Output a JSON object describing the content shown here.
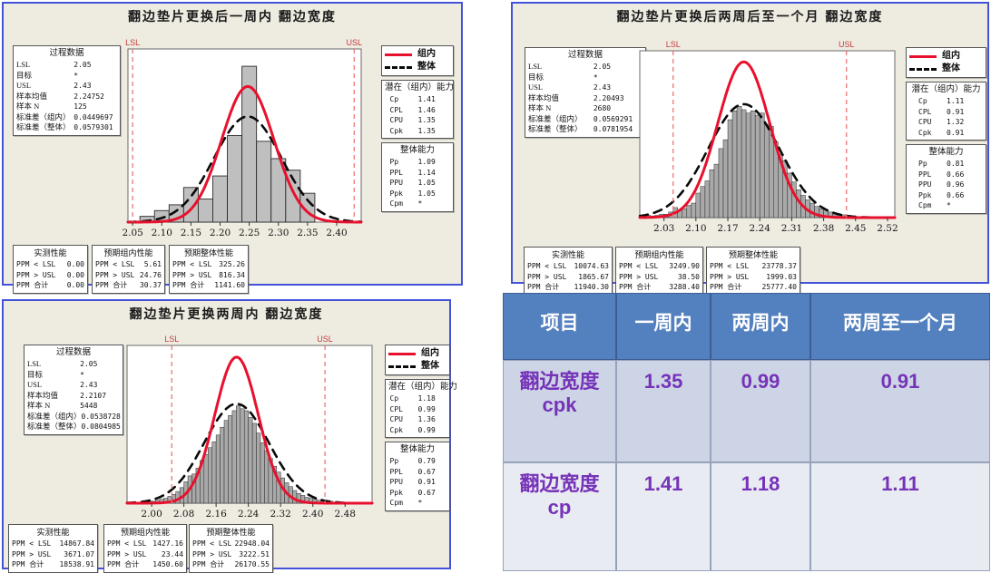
{
  "colors": {
    "panel_bg": "#EEEBE1",
    "panel_border": "#4353D9",
    "within_curve": "#E8112D",
    "overall_curve": "#0A0A0A",
    "spec_line": "#E87878",
    "spec_text": "#C43B3B",
    "bar_fill": "#BFBFBF",
    "bar_fill_dense": "#A9A9A9",
    "table_header_bg": "#5380BE",
    "table_row1_bg": "#CDD4E6",
    "table_row2_bg": "#E9EBF3",
    "table_value_text": "#7633B8"
  },
  "chart_data": [
    {
      "type": "histogram-capability",
      "title": "翻边垫片更换后一周内  翻边宽度",
      "legend": [
        {
          "label": "组内",
          "style": "within"
        },
        {
          "label": "整体",
          "style": "overall"
        }
      ],
      "process_data": {
        "title": "过程数据",
        "rows": [
          [
            "LSL",
            "2.05"
          ],
          [
            "目标",
            "*"
          ],
          [
            "USL",
            "2.43"
          ],
          [
            "样本均值",
            "2.24752"
          ],
          [
            "样本 N",
            "125"
          ],
          [
            "标准差（组内）",
            "0.0449697"
          ],
          [
            "标准差（整体）",
            "0.0579301"
          ]
        ]
      },
      "within_capability": {
        "title": "潜在（组内）能力",
        "rows": [
          [
            "Cp",
            "1.41"
          ],
          [
            "CPL",
            "1.46"
          ],
          [
            "CPU",
            "1.35"
          ],
          [
            "Cpk",
            "1.35"
          ]
        ]
      },
      "overall_capability": {
        "title": "整体能力",
        "rows": [
          [
            "Pp",
            "1.09"
          ],
          [
            "PPL",
            "1.14"
          ],
          [
            "PPU",
            "1.05"
          ],
          [
            "Ppk",
            "1.05"
          ],
          [
            "Cpm",
            "*"
          ]
        ]
      },
      "performance": [
        {
          "title": "实测性能",
          "rows": [
            [
              "PPM < LSL",
              "0.00"
            ],
            [
              "PPM > USL",
              "0.00"
            ],
            [
              "PPM 合计",
              "0.00"
            ]
          ]
        },
        {
          "title": "预期组内性能",
          "rows": [
            [
              "PPM < LSL",
              "5.61"
            ],
            [
              "PPM > USL",
              "24.76"
            ],
            [
              "PPM 合计",
              "30.37"
            ]
          ]
        },
        {
          "title": "预期整体性能",
          "rows": [
            [
              "PPM < LSL",
              "325.26"
            ],
            [
              "PPM > USL",
              "816.34"
            ],
            [
              "PPM 合计",
              "1141.60"
            ]
          ]
        }
      ],
      "lsl": 2.05,
      "usl": 2.43,
      "lsl_label": "LSL",
      "usl_label": "USL",
      "x_ticks": [
        "2.05",
        "2.10",
        "2.15",
        "2.20",
        "2.25",
        "2.30",
        "2.35",
        "2.40"
      ],
      "xmin": 2.042,
      "xmax": 2.442,
      "ymax": 30,
      "bins": {
        "start": 2.0625,
        "width": 0.025,
        "heights": [
          1,
          2,
          3,
          6,
          4,
          8,
          15,
          27,
          14,
          11,
          9,
          5
        ]
      },
      "curves": {
        "within": {
          "mean": 2.24752,
          "sd": 0.0449697,
          "peak": 23.5
        },
        "overall": {
          "mean": 2.24752,
          "sd": 0.0579301,
          "peak": 18.3
        }
      }
    },
    {
      "type": "histogram-capability",
      "title": "翻边垫片更换后两周后至一个月  翻边宽度",
      "legend": [
        {
          "label": "组内",
          "style": "within"
        },
        {
          "label": "整体",
          "style": "overall"
        }
      ],
      "process_data": {
        "title": "过程数据",
        "rows": [
          [
            "LSL",
            "2.05"
          ],
          [
            "目标",
            "*"
          ],
          [
            "USL",
            "2.43"
          ],
          [
            "样本均值",
            "2.20493"
          ],
          [
            "样本 N",
            "2680"
          ],
          [
            "标准差（组内）",
            "0.0569291"
          ],
          [
            "标准差（整体）",
            "0.0781954"
          ]
        ]
      },
      "within_capability": {
        "title": "潜在（组内）能力",
        "rows": [
          [
            "Cp",
            "1.11"
          ],
          [
            "CPL",
            "0.91"
          ],
          [
            "CPU",
            "1.32"
          ],
          [
            "Cpk",
            "0.91"
          ]
        ]
      },
      "overall_capability": {
        "title": "整体能力",
        "rows": [
          [
            "Pp",
            "0.81"
          ],
          [
            "PPL",
            "0.66"
          ],
          [
            "PPU",
            "0.96"
          ],
          [
            "Ppk",
            "0.66"
          ],
          [
            "Cpm",
            "*"
          ]
        ]
      },
      "performance": [
        {
          "title": "实测性能",
          "rows": [
            [
              "PPM < LSL",
              "10074.63"
            ],
            [
              "PPM > USL",
              "1865.67"
            ],
            [
              "PPM 合计",
              "11940.30"
            ]
          ]
        },
        {
          "title": "预期组内性能",
          "rows": [
            [
              "PPM < LSL",
              "3249.90"
            ],
            [
              "PPM > USL",
              "38.50"
            ],
            [
              "PPM 合计",
              "3288.40"
            ]
          ]
        },
        {
          "title": "预期整体性能",
          "rows": [
            [
              "PPM < LSL",
              "23778.37"
            ],
            [
              "PPM > USL",
              "1999.03"
            ],
            [
              "PPM 合计",
              "25777.40"
            ]
          ]
        }
      ],
      "lsl": 2.05,
      "usl": 2.43,
      "lsl_label": "LSL",
      "usl_label": "USL",
      "x_ticks": [
        "2.03",
        "2.10",
        "2.17",
        "2.24",
        "2.31",
        "2.38",
        "2.45",
        "2.52"
      ],
      "xmin": 1.977,
      "xmax": 2.536,
      "ymax": 1.5,
      "bins": {
        "start": 1.99,
        "width": 0.01,
        "heights": [
          0.02,
          0.015,
          0.02,
          0.03,
          0.03,
          0.05,
          0.09,
          0.06,
          0.08,
          0.11,
          0.13,
          0.22,
          0.28,
          0.33,
          0.43,
          0.48,
          0.62,
          0.7,
          0.88,
          0.96,
          1.0,
          0.97,
          0.94,
          0.96,
          0.92,
          0.94,
          0.84,
          0.82,
          0.68,
          0.57,
          0.51,
          0.4,
          0.32,
          0.25,
          0.2,
          0.16,
          0.13,
          0.1,
          0.08,
          0.07,
          0.05,
          0.04,
          0.03,
          0.025,
          0.02,
          0.015,
          0.01,
          0.01
        ]
      },
      "curves": {
        "within": {
          "mean": 2.20493,
          "sd": 0.0569291,
          "peak": 1.4
        },
        "overall": {
          "mean": 2.20493,
          "sd": 0.0781954,
          "peak": 1.02
        }
      }
    },
    {
      "type": "histogram-capability",
      "title": "翻边垫片更换两周内  翻边宽度",
      "legend": [
        {
          "label": "组内",
          "style": "within"
        },
        {
          "label": "整体",
          "style": "overall"
        }
      ],
      "process_data": {
        "title": "过程数据",
        "rows": [
          [
            "LSL",
            "2.05"
          ],
          [
            "目标",
            "*"
          ],
          [
            "USL",
            "2.43"
          ],
          [
            "样本均值",
            "2.2107"
          ],
          [
            "样本 N",
            "5448"
          ],
          [
            "标准差（组内）",
            "0.0538728"
          ],
          [
            "标准差（整体）",
            "0.0804985"
          ]
        ]
      },
      "within_capability": {
        "title": "潜在（组内）能力",
        "rows": [
          [
            "Cp",
            "1.18"
          ],
          [
            "CPL",
            "0.99"
          ],
          [
            "CPU",
            "1.36"
          ],
          [
            "Cpk",
            "0.99"
          ]
        ]
      },
      "overall_capability": {
        "title": "整体能力",
        "rows": [
          [
            "Pp",
            "0.79"
          ],
          [
            "PPL",
            "0.67"
          ],
          [
            "PPU",
            "0.91"
          ],
          [
            "Ppk",
            "0.67"
          ],
          [
            "Cpm",
            "*"
          ]
        ]
      },
      "performance": [
        {
          "title": "实测性能",
          "rows": [
            [
              "PPM < LSL",
              "14867.84"
            ],
            [
              "PPM > USL",
              "3671.07"
            ],
            [
              "PPM 合计",
              "18538.91"
            ]
          ]
        },
        {
          "title": "预期组内性能",
          "rows": [
            [
              "PPM < LSL",
              "1427.16"
            ],
            [
              "PPM > USL",
              "23.44"
            ],
            [
              "PPM 合计",
              "1450.60"
            ]
          ]
        },
        {
          "title": "预期整体性能",
          "rows": [
            [
              "PPM < LSL",
              "22948.04"
            ],
            [
              "PPM > USL",
              "3222.51"
            ],
            [
              "PPM 合计",
              "26170.55"
            ]
          ]
        }
      ],
      "lsl": 2.05,
      "usl": 2.43,
      "lsl_label": "LSL",
      "usl_label": "USL",
      "x_ticks": [
        "2.00",
        "2.08",
        "2.16",
        "2.24",
        "2.32",
        "2.40",
        "2.48"
      ],
      "xmin": 1.939,
      "xmax": 2.547,
      "ymax": 1.62,
      "bins": {
        "start": 1.98,
        "width": 0.01,
        "heights": [
          0.01,
          0.02,
          0.02,
          0.03,
          0.04,
          0.05,
          0.07,
          0.09,
          0.12,
          0.16,
          0.22,
          0.28,
          0.3,
          0.36,
          0.44,
          0.5,
          0.57,
          0.63,
          0.7,
          0.78,
          0.85,
          0.9,
          0.95,
          1.0,
          0.97,
          0.95,
          0.88,
          0.82,
          0.72,
          0.62,
          0.54,
          0.46,
          0.38,
          0.32,
          0.26,
          0.21,
          0.17,
          0.13,
          0.1,
          0.08,
          0.06,
          0.05,
          0.04,
          0.03,
          0.03,
          0.02,
          0.02,
          0.01,
          0.01,
          0.01,
          0.01,
          0.01
        ]
      },
      "curves": {
        "within": {
          "mean": 2.2107,
          "sd": 0.0538728,
          "peak": 1.5
        },
        "overall": {
          "mean": 2.2107,
          "sd": 0.0804985,
          "peak": 1.02
        }
      }
    },
    {
      "type": "table",
      "columns": [
        "项目",
        "一周内",
        "两周内",
        "两周至一个月"
      ],
      "rows": [
        {
          "label": "翻边宽度",
          "sub": "cpk",
          "values": [
            "1.35",
            "0.99",
            "0.91"
          ]
        },
        {
          "label": "翻边宽度",
          "sub": "cp",
          "values": [
            "1.41",
            "1.18",
            "1.11"
          ]
        }
      ]
    }
  ]
}
